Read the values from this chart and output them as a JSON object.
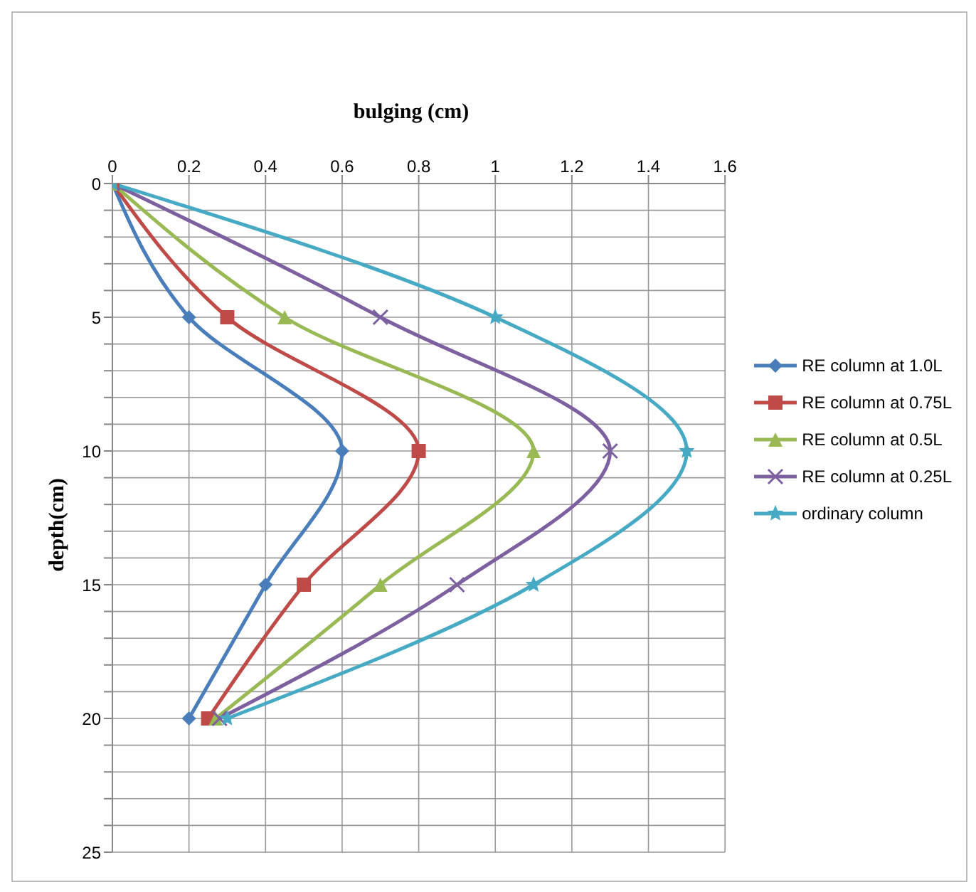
{
  "chart_data": {
    "type": "line",
    "xlabel": "bulging (cm)",
    "ylabel": "depth(cm)",
    "series": [
      {
        "name": "RE column at 1.0L",
        "color": "#4a7ebb",
        "marker": "diamond",
        "x": [
          0,
          0.2,
          0.6,
          0.4,
          0.2
        ],
        "values": [
          0,
          5,
          10,
          15,
          20
        ]
      },
      {
        "name": "RE column at 0.75L",
        "color": "#be4b48",
        "marker": "square",
        "x": [
          0,
          0.3,
          0.8,
          0.5,
          0.25
        ],
        "values": [
          0,
          5,
          10,
          15,
          20
        ]
      },
      {
        "name": "RE column at 0.5L",
        "color": "#98b954",
        "marker": "triangle",
        "x": [
          0,
          0.45,
          1.1,
          0.7,
          0.27
        ],
        "values": [
          0,
          5,
          10,
          15,
          20
        ]
      },
      {
        "name": "RE column at 0.25L",
        "color": "#7d60a0",
        "marker": "cross",
        "x": [
          0,
          0.7,
          1.3,
          0.9,
          0.28
        ],
        "values": [
          0,
          5,
          10,
          15,
          20
        ]
      },
      {
        "name": "ordinary column",
        "color": "#46aac5",
        "marker": "star",
        "x": [
          0,
          1,
          1.5,
          1.1,
          0.3
        ],
        "values": [
          0,
          5,
          10,
          15,
          20
        ]
      }
    ],
    "xlim": [
      0,
      1.6
    ],
    "xticks": [
      0,
      0.2,
      0.4,
      0.6,
      0.8,
      1,
      1.2,
      1.4,
      1.6
    ],
    "ylim": [
      25,
      0
    ],
    "yticks": [
      0,
      {
        "value": 1,
        "label": null
      },
      {
        "value": 2,
        "label": null
      },
      {
        "value": 3,
        "label": null
      },
      {
        "value": 4,
        "label": null
      },
      5,
      {
        "value": 6,
        "label": null
      },
      {
        "value": 7,
        "label": null
      },
      {
        "value": 8,
        "label": null
      },
      {
        "value": 9,
        "label": null
      },
      10,
      {
        "value": 11,
        "label": null
      },
      {
        "value": 12,
        "label": null
      },
      {
        "value": 13,
        "label": null
      },
      {
        "value": 14,
        "label": null
      },
      15,
      {
        "value": 16,
        "label": null
      },
      {
        "value": 17,
        "label": null
      },
      {
        "value": 18,
        "label": null
      },
      {
        "value": 19,
        "label": null
      },
      20,
      {
        "value": 21,
        "label": null
      },
      {
        "value": 22,
        "label": null
      },
      {
        "value": 23,
        "label": null
      },
      {
        "value": 24,
        "label": null
      },
      25
    ],
    "grid": true,
    "legend": "right",
    "line_style": "solid"
  }
}
